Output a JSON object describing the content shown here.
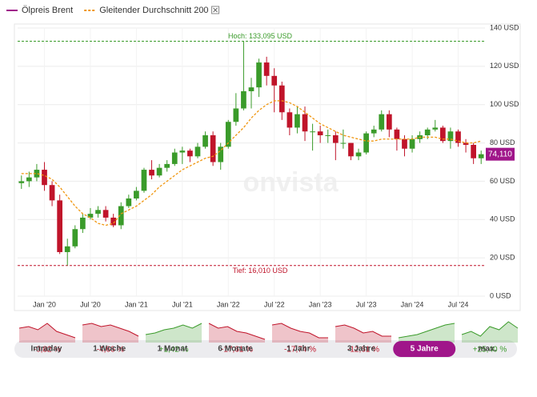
{
  "chart_data": {
    "type": "candlestick",
    "categories": [
      null,
      null,
      null,
      "Jan '20",
      null,
      null,
      null,
      null,
      null,
      "Jul '20",
      null,
      null,
      null,
      null,
      null,
      "Jan '21",
      null,
      null,
      null,
      null,
      null,
      "Jul '21",
      null,
      null,
      null,
      null,
      null,
      "Jan '22",
      null,
      null,
      null,
      null,
      null,
      "Jul '22",
      null,
      null,
      null,
      null,
      null,
      "Jan '23",
      null,
      null,
      null,
      null,
      null,
      "Jul '23",
      null,
      null,
      null,
      null,
      null,
      "Jan '24",
      null,
      null,
      null,
      null,
      null,
      "Jul '24",
      null,
      null,
      null
    ],
    "series": [
      {
        "name": "Ölpreis Brent",
        "color": "#a0168a",
        "up_color": "#3a9b2a",
        "down_color": "#c0142a",
        "open": [
          59,
          60,
          62,
          66,
          58,
          50,
          23,
          26,
          35,
          41,
          43,
          45,
          41,
          37,
          47,
          51,
          55,
          66,
          63,
          67,
          69,
          75,
          76,
          73,
          78,
          84,
          70,
          78,
          91,
          98,
          107,
          109,
          122,
          115,
          110,
          96,
          88,
          95,
          86,
          86,
          84,
          84,
          80,
          80,
          73,
          75,
          85,
          87,
          95,
          87,
          82,
          77,
          82,
          84,
          87,
          88,
          81,
          86,
          80,
          79,
          72
        ],
        "high": [
          63,
          65,
          69,
          70,
          60,
          53,
          30,
          37,
          43,
          46,
          47,
          47,
          43,
          49,
          53,
          57,
          67,
          71,
          69,
          71,
          77,
          78,
          77,
          80,
          86,
          86,
          80,
          92,
          106,
          133.095,
          114,
          124,
          125,
          119,
          112,
          98,
          99,
          99,
          90,
          89,
          87,
          86,
          87,
          80,
          77,
          86,
          89,
          97,
          97,
          88,
          84,
          84,
          86,
          88,
          92,
          89,
          88,
          87,
          82,
          80,
          76
        ],
        "low": [
          56,
          57,
          60,
          55,
          47,
          22,
          16.01,
          25,
          33,
          40,
          41,
          39,
          36,
          35,
          46,
          50,
          54,
          61,
          62,
          65,
          68,
          69,
          70,
          72,
          77,
          68,
          66,
          77,
          89,
          97,
          98,
          104,
          110,
          96,
          92,
          84,
          85,
          81,
          76,
          80,
          80,
          71,
          77,
          71,
          71,
          74,
          83,
          86,
          83,
          76,
          73,
          75,
          80,
          82,
          86,
          80,
          77,
          78,
          75,
          69,
          69
        ],
        "close": [
          60,
          62,
          66,
          58,
          50,
          23,
          26,
          35,
          41,
          43,
          45,
          41,
          37,
          47,
          51,
          55,
          66,
          63,
          67,
          69,
          75,
          76,
          73,
          78,
          84,
          70,
          78,
          91,
          98,
          107,
          109,
          122,
          115,
          110,
          96,
          88,
          95,
          86,
          86,
          84,
          84,
          80,
          80,
          73,
          75,
          85,
          87,
          95,
          87,
          82,
          77,
          82,
          84,
          87,
          88,
          81,
          86,
          80,
          79,
          72,
          74.11
        ]
      },
      {
        "name": "Gleitender Durchschnitt 200",
        "color": "#f0960f",
        "type": "line",
        "values": [
          64,
          64,
          64,
          63,
          61,
          57,
          52,
          47,
          43,
          41,
          38,
          37,
          38,
          43,
          45,
          47,
          50,
          53,
          57,
          60,
          63,
          66,
          68,
          70,
          72,
          73,
          76,
          80,
          84,
          88,
          93,
          97,
          100,
          102,
          102,
          101,
          99,
          96,
          93,
          90,
          88,
          86,
          84,
          83,
          82,
          81,
          81,
          82,
          82,
          82,
          82,
          82,
          83,
          83,
          83,
          82,
          82,
          81,
          80,
          80,
          81
        ]
      }
    ],
    "annotations": [
      {
        "value": 133.095,
        "label": "Hoch: 133,095 USD",
        "color": "#3a9b2a"
      },
      {
        "value": 16.01,
        "label": "Tief: 16,010 USD",
        "color": "#c0142a"
      },
      {
        "value": 74.11,
        "label": "74,110",
        "color": "#a0168a"
      }
    ],
    "ylim": [
      0,
      140
    ],
    "yticks": [
      {
        "value": 0,
        "label": "0 USD"
      },
      {
        "value": 20,
        "label": "20 USD"
      },
      {
        "value": 40,
        "label": "40 USD"
      },
      {
        "value": 60,
        "label": "60 USD"
      },
      {
        "value": 80,
        "label": "80 USD"
      },
      {
        "value": 100,
        "label": "100 USD"
      },
      {
        "value": 120,
        "label": "120 USD"
      },
      {
        "value": 140,
        "label": "140 USD"
      }
    ],
    "grid": true,
    "watermark": "onvista"
  },
  "periods": [
    {
      "change": "-0,82 %",
      "color": "#c0142a"
    },
    {
      "change": "-4,66 %",
      "color": "#c0142a"
    },
    {
      "change": "+1,42 %",
      "color": "#3a9b2a"
    },
    {
      "change": "-17,61 %",
      "color": "#c0142a"
    },
    {
      "change": "-17,74 %",
      "color": "#c0142a"
    },
    {
      "change": "-12,61 %",
      "color": "#c0142a"
    },
    {
      "change": "+25,91 %",
      "color": "#3a9b2a"
    },
    {
      "change": "+25,40 %",
      "color": "#3a9b2a"
    }
  ],
  "tabs": {
    "items": [
      "Intraday",
      "1 Woche",
      "1 Monat",
      "6 Monate",
      "1 Jahr",
      "3 Jahre",
      "5 Jahre",
      "max."
    ],
    "active": 6
  }
}
